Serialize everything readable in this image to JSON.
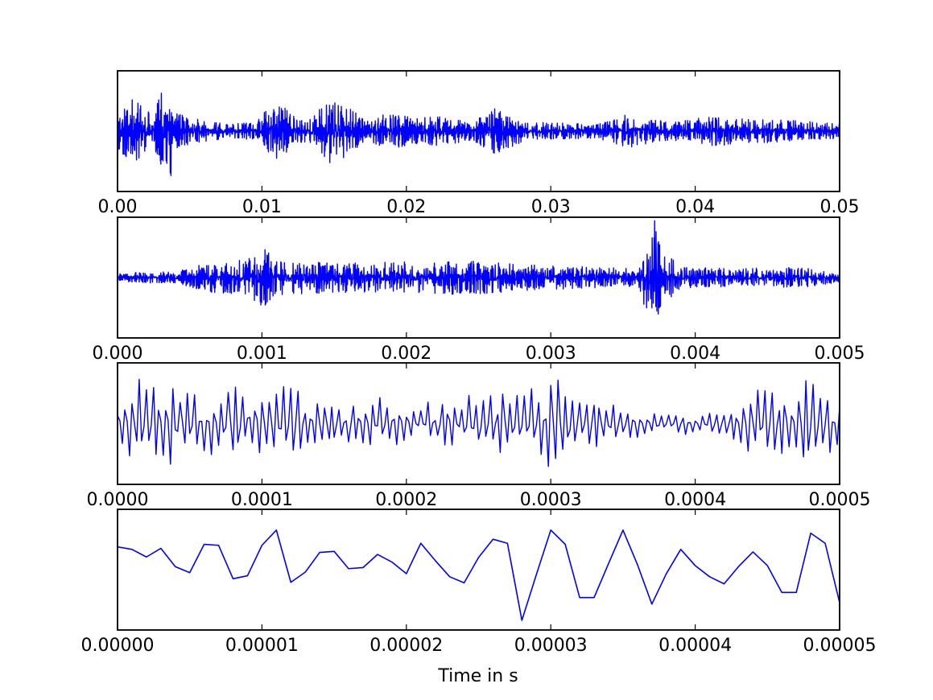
{
  "chart_data": [
    {
      "type": "line",
      "title": "",
      "xlabel": "",
      "ylabel": "",
      "xlim": [
        0.0,
        0.05
      ],
      "xticks": [
        "0.00",
        "0.01",
        "0.02",
        "0.03",
        "0.04",
        "0.05"
      ],
      "yticks": [],
      "grid": false,
      "series": [
        {
          "color": "#0000ff",
          "x": [
            0.0,
            0.0011,
            0.0025,
            0.0036,
            0.0041,
            0.0056,
            0.0075,
            0.0095,
            0.0111,
            0.0115,
            0.0131,
            0.015,
            0.0157,
            0.0171,
            0.0188,
            0.0207,
            0.0226,
            0.0245,
            0.0262,
            0.0271,
            0.0285,
            0.0306,
            0.0331,
            0.0353,
            0.0362,
            0.0382,
            0.0412,
            0.0441,
            0.0472,
            0.05
          ],
          "envelope": [
            0.35,
            0.55,
            0.32,
            1.0,
            0.3,
            0.2,
            0.12,
            0.15,
            0.55,
            0.4,
            0.18,
            0.6,
            0.45,
            0.2,
            0.3,
            0.22,
            0.25,
            0.15,
            0.4,
            0.28,
            0.15,
            0.14,
            0.12,
            0.28,
            0.24,
            0.15,
            0.25,
            0.2,
            0.18,
            0.12
          ]
        }
      ]
    },
    {
      "type": "line",
      "title": "",
      "xlabel": "",
      "ylabel": "",
      "xlim": [
        0.0,
        0.005
      ],
      "xticks": [
        "0.000",
        "0.001",
        "0.002",
        "0.003",
        "0.004",
        "0.005"
      ],
      "yticks": [],
      "grid": false,
      "series": [
        {
          "color": "#0000ff",
          "x": [
            0.0,
            0.0004,
            0.00068,
            0.0009,
            0.001,
            0.00115,
            0.0015,
            0.0018,
            0.0021,
            0.0024,
            0.0027,
            0.003,
            0.0033,
            0.0036,
            0.00372,
            0.00376,
            0.0039,
            0.0043,
            0.0047,
            0.005
          ],
          "envelope": [
            0.08,
            0.1,
            0.28,
            0.3,
            0.5,
            0.3,
            0.25,
            0.26,
            0.28,
            0.3,
            0.24,
            0.2,
            0.18,
            0.15,
            1.0,
            0.5,
            0.18,
            0.15,
            0.18,
            0.08
          ]
        }
      ]
    },
    {
      "type": "line",
      "title": "",
      "xlabel": "",
      "ylabel": "",
      "xlim": [
        0.0,
        0.0005
      ],
      "xticks": [
        "0.0000",
        "0.0001",
        "0.0002",
        "0.0003",
        "0.0004",
        "0.0005"
      ],
      "yticks": [],
      "grid": false,
      "series": [
        {
          "color": "#0000ff",
          "x": [
            0.0,
            2e-05,
            6e-05,
            8e-05,
            0.0001,
            0.00012,
            0.00015,
            0.00018,
            0.0002,
            0.00022,
            0.00025,
            0.00028,
            0.0003,
            0.00032,
            0.00035,
            0.00038,
            0.00042,
            0.00045,
            0.00047,
            0.00048,
            0.0005
          ],
          "envelope": [
            0.4,
            0.9,
            0.5,
            0.75,
            0.55,
            0.65,
            0.3,
            0.55,
            0.3,
            0.4,
            0.55,
            0.7,
            0.9,
            0.5,
            0.3,
            0.15,
            0.25,
            0.7,
            0.5,
            1.0,
            0.4
          ]
        }
      ]
    },
    {
      "type": "line",
      "title": "",
      "xlabel": "Time in s",
      "ylabel": "",
      "xlim": [
        0.0,
        5e-05
      ],
      "xticks": [
        "0.00000",
        "0.00001",
        "0.00002",
        "0.00003",
        "0.00004",
        "0.00005"
      ],
      "yticks": [],
      "ylim": [
        -1.0,
        1.0
      ],
      "grid": false,
      "series": [
        {
          "color": "#0000ff",
          "x": [
            0.0,
            1e-06,
            2e-06,
            3e-06,
            4e-06,
            5e-06,
            6e-06,
            7e-06,
            8e-06,
            9e-06,
            1e-05,
            1.1e-05,
            1.2e-05,
            1.3e-05,
            1.4e-05,
            1.5e-05,
            1.6e-05,
            1.7e-05,
            1.8e-05,
            1.9e-05,
            2e-05,
            2.1e-05,
            2.2e-05,
            2.3e-05,
            2.4e-05,
            2.5e-05,
            2.6e-05,
            2.7e-05,
            2.8e-05,
            2.9e-05,
            3e-05,
            3.1e-05,
            3.2e-05,
            3.3e-05,
            3.4e-05,
            3.5e-05,
            3.6e-05,
            3.7e-05,
            3.8e-05,
            3.9e-05,
            4e-05,
            4.1e-05,
            4.2e-05,
            4.3e-05,
            4.4e-05,
            4.5e-05,
            4.6e-05,
            4.7e-05,
            4.8e-05,
            4.9e-05,
            5e-05
          ],
          "y": [
            0.45,
            0.4,
            0.25,
            0.42,
            0.06,
            -0.06,
            0.5,
            0.48,
            -0.18,
            -0.12,
            0.48,
            0.78,
            -0.25,
            -0.05,
            0.34,
            0.36,
            0.02,
            0.04,
            0.3,
            0.15,
            -0.08,
            0.52,
            0.18,
            -0.14,
            -0.26,
            0.24,
            0.6,
            0.52,
            -1.0,
            -0.1,
            0.78,
            0.5,
            -0.55,
            -0.55,
            0.12,
            0.78,
            0.1,
            -0.68,
            -0.08,
            0.4,
            0.08,
            -0.14,
            -0.28,
            0.06,
            0.35,
            0.08,
            -0.45,
            -0.45,
            0.72,
            0.52,
            -0.65
          ]
        }
      ]
    }
  ]
}
